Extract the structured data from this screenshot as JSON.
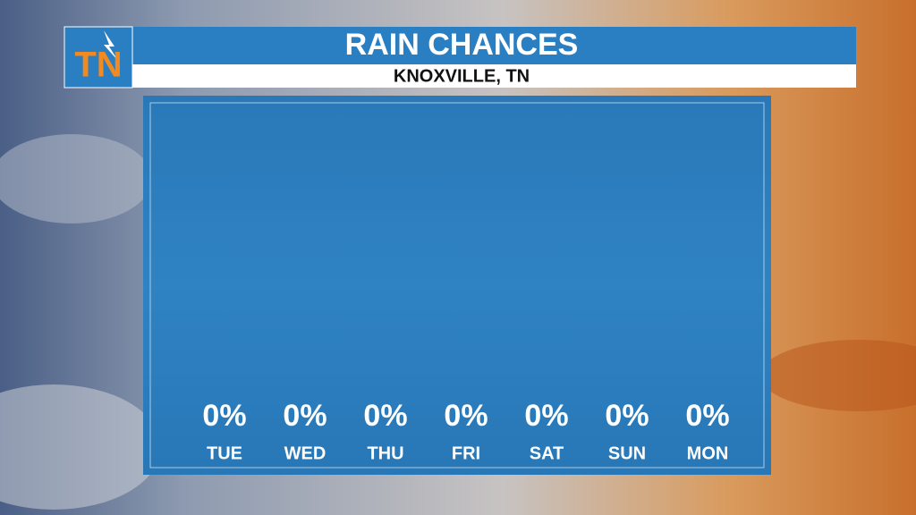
{
  "logo": {
    "text": "TN"
  },
  "chart_data": {
    "type": "bar",
    "title": "RAIN CHANCES",
    "subtitle": "KNOXVILLE, TN",
    "categories": [
      "TUE",
      "WED",
      "THU",
      "FRI",
      "SAT",
      "SUN",
      "MON"
    ],
    "values": [
      0,
      0,
      0,
      0,
      0,
      0,
      0
    ],
    "value_labels": [
      "0%",
      "0%",
      "0%",
      "0%",
      "0%",
      "0%",
      "0%"
    ],
    "color": "#ffffff"
  }
}
